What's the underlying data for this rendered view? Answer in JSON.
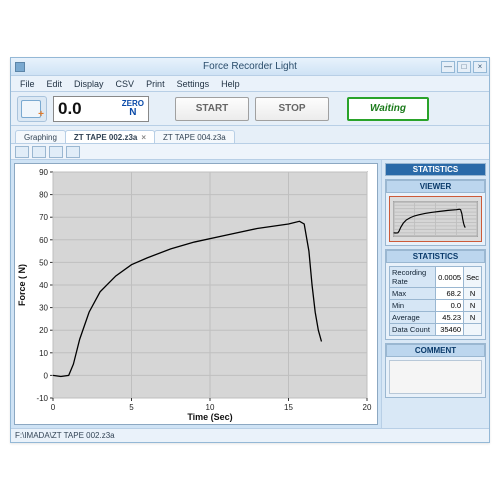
{
  "window": {
    "title": "Force Recorder Light",
    "min_icon": "—",
    "max_icon": "□",
    "close_icon": "×"
  },
  "menu": [
    "File",
    "Edit",
    "Display",
    "CSV",
    "Print",
    "Settings",
    "Help"
  ],
  "toolbar": {
    "reading_value": "0.0",
    "zero_label": "ZERO",
    "unit_label": "N",
    "start_label": "START",
    "stop_label": "STOP",
    "status_label": "Waiting"
  },
  "tabs": [
    {
      "label": "Graphing",
      "closable": false,
      "active": false
    },
    {
      "label": "ZT TAPE 002.z3a",
      "closable": true,
      "active": true
    },
    {
      "label": "ZT TAPE 004.z3a",
      "closable": false,
      "active": false
    }
  ],
  "chart": {
    "type": "line",
    "plot_bg": "#d6d6d6",
    "grid_color": "#bfbfbf",
    "axis_color": "#333333",
    "line_color": "#000000",
    "line_width": 1.3,
    "xlabel": "Time (Sec)",
    "ylabel": "Force ( N)",
    "label_fontsize": 9,
    "tick_fontsize": 8,
    "xlim": [
      0,
      20
    ],
    "xtick_step": 5,
    "ylim": [
      -10,
      90
    ],
    "ytick_step": 10,
    "series": [
      {
        "x": 0.0,
        "y": 0
      },
      {
        "x": 0.5,
        "y": -0.5
      },
      {
        "x": 1.0,
        "y": 0
      },
      {
        "x": 1.3,
        "y": 5
      },
      {
        "x": 1.7,
        "y": 16
      },
      {
        "x": 2.3,
        "y": 28
      },
      {
        "x": 3.0,
        "y": 37
      },
      {
        "x": 4.0,
        "y": 44
      },
      {
        "x": 5.0,
        "y": 49
      },
      {
        "x": 6.0,
        "y": 52
      },
      {
        "x": 7.5,
        "y": 56
      },
      {
        "x": 9.0,
        "y": 59
      },
      {
        "x": 11.0,
        "y": 62
      },
      {
        "x": 13.0,
        "y": 65
      },
      {
        "x": 15.0,
        "y": 67
      },
      {
        "x": 15.7,
        "y": 68.2
      },
      {
        "x": 16.0,
        "y": 67
      },
      {
        "x": 16.3,
        "y": 55
      },
      {
        "x": 16.5,
        "y": 40
      },
      {
        "x": 16.7,
        "y": 28
      },
      {
        "x": 16.9,
        "y": 20
      },
      {
        "x": 17.1,
        "y": 15
      }
    ]
  },
  "side": {
    "header": "STATISTICS",
    "viewer_label": "VIEWER",
    "stats_label": "STATISTICS",
    "comment_label": "COMMENT",
    "rows": [
      {
        "k": "Recording Rate",
        "v": "0.0005",
        "u": "Sec"
      },
      {
        "k": "Max",
        "v": "68.2",
        "u": "N"
      },
      {
        "k": "Min",
        "v": "0.0",
        "u": "N"
      },
      {
        "k": "Average",
        "v": "45.23",
        "u": "N"
      },
      {
        "k": "Data Count",
        "v": "35460",
        "u": ""
      }
    ]
  },
  "statusbar": "F:\\IMADA\\ZT TAPE 002.z3a"
}
